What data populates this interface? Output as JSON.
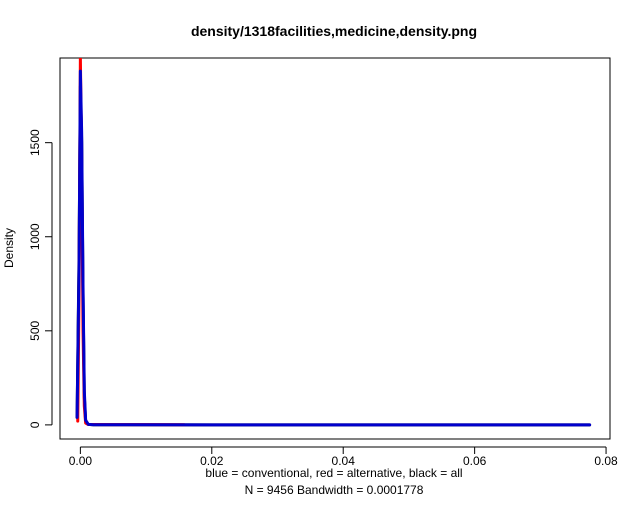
{
  "chart_data": {
    "type": "line",
    "title": "density/1318facilities,medicine,density.png",
    "ylabel": "Density",
    "xlabel_lines": [
      "blue = conventional, red = alternative, black = all",
      "N = 9456   Bandwidth = 0.0001778"
    ],
    "xlim": [
      -0.0031,
      0.0806
    ],
    "ylim": [
      -75,
      1950
    ],
    "x_ticks": [
      0.0,
      0.02,
      0.04,
      0.06,
      0.08
    ],
    "x_tick_labels": [
      "0.00",
      "0.02",
      "0.04",
      "0.06",
      "0.08"
    ],
    "y_ticks": [
      0,
      500,
      1000,
      1500
    ],
    "y_tick_labels": [
      "0",
      "500",
      "1000",
      "1500"
    ],
    "grid": false,
    "series": [
      {
        "name": "all",
        "color": "#000000",
        "x": [
          -0.0005,
          -0.0002,
          0.0,
          0.0002,
          0.0004,
          0.0006,
          0.0008,
          0.0012,
          0.002,
          0.005,
          0.02,
          0.04,
          0.06,
          0.0775
        ],
        "y": [
          40,
          900,
          1800,
          1500,
          700,
          150,
          20,
          3,
          1,
          0.5,
          0.2,
          0.1,
          0.05,
          0.05
        ]
      },
      {
        "name": "alternative",
        "color": "#ff0000",
        "x": [
          -0.0004,
          -0.0002,
          0.0,
          0.0002,
          0.0004,
          0.0006,
          0.0008,
          0.0012,
          0.002,
          0.005,
          0.01,
          0.0158
        ],
        "y": [
          20,
          700,
          1950,
          1400,
          500,
          100,
          10,
          2,
          2,
          1.5,
          1.5,
          1
        ]
      },
      {
        "name": "conventional",
        "color": "#0000cc",
        "x": [
          -0.0005,
          -0.0002,
          0.0,
          0.0002,
          0.0004,
          0.0006,
          0.0008,
          0.0012,
          0.002,
          0.005,
          0.02,
          0.04,
          0.06,
          0.0775
        ],
        "y": [
          40,
          850,
          1880,
          1550,
          750,
          180,
          25,
          3,
          1,
          0.5,
          0.2,
          0.1,
          0.05,
          0.05
        ]
      }
    ]
  }
}
